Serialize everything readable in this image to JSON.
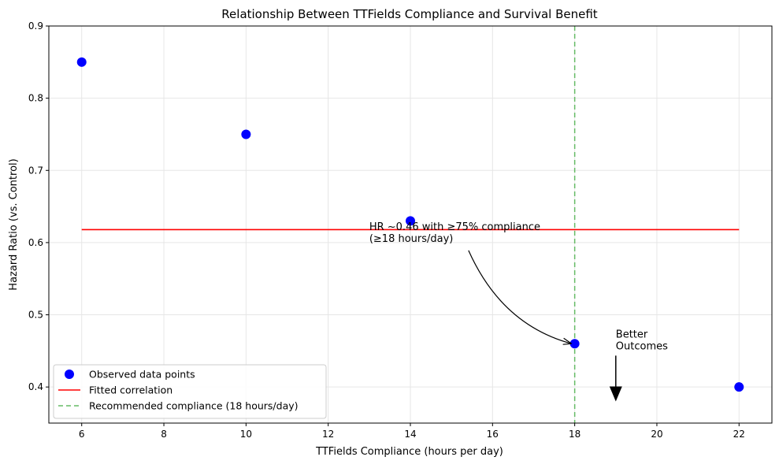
{
  "chart_data": {
    "type": "scatter",
    "title": "Relationship Between TTFields Compliance and Survival Benefit",
    "xlabel": "TTFields Compliance (hours per day)",
    "ylabel": "Hazard Ratio (vs. Control)",
    "xlim": [
      5.2,
      22.8
    ],
    "ylim": [
      0.35,
      0.9
    ],
    "xticks": [
      6,
      8,
      10,
      12,
      14,
      16,
      18,
      20,
      22
    ],
    "yticks": [
      0.4,
      0.5,
      0.6,
      0.7,
      0.8,
      0.9
    ],
    "grid": true,
    "legend_position": "lower-left",
    "series": [
      {
        "name": "Observed data points",
        "kind": "scatter",
        "color": "#0000ff",
        "x": [
          6,
          10,
          14,
          18,
          22
        ],
        "y": [
          0.85,
          0.75,
          0.63,
          0.46,
          0.4
        ]
      },
      {
        "name": "Fitted correlation",
        "kind": "line",
        "color": "#ff0000",
        "x": [
          6,
          22
        ],
        "y": [
          0.618,
          0.618
        ]
      },
      {
        "name": "Recommended compliance (18 hours/day)",
        "kind": "vline",
        "color": "#66bb66",
        "x": 18
      }
    ],
    "annotations": [
      {
        "lines": [
          "HR ~0.46 with ≥75% compliance",
          "(≥18 hours/day)"
        ],
        "text_x": 13,
        "text_y": 0.6,
        "arrow_to_x": 18,
        "arrow_to_y": 0.46
      },
      {
        "lines": [
          "Better",
          "Outcomes"
        ],
        "text_x": 19,
        "text_y": 0.45,
        "arrow_from_y": 0.45,
        "arrow_to_y": 0.38
      }
    ]
  }
}
